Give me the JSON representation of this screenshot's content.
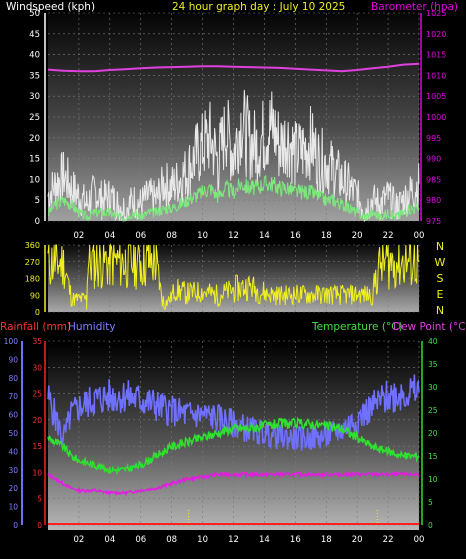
{
  "header": {
    "left_title": "Windspeed (kph)",
    "center_title": "24 hour graph day : July 10 2025",
    "right_title": "Barometer (hpa)"
  },
  "colors": {
    "wind_speed": "#e8e8e8",
    "wind_avg": "#7ee87e",
    "barometer": "#e040e0",
    "direction": "#f0f020",
    "rain": "#ff2020",
    "humidity": "#7070ff",
    "temperature": "#30e030",
    "dewpoint": "#e020e0",
    "left_axis_text": "#ffffff",
    "baro_axis_text": "#e000e0",
    "rain_axis_text": "#ff3030",
    "hum_axis_text": "#8080ff",
    "temp_axis_text": "#40e040"
  },
  "chart_data": [
    {
      "id": "wind",
      "type": "line",
      "title": "24 hour graph day : July 10 2025",
      "ylabel": "Windspeed (kph)",
      "y2label": "Barometer (hpa)",
      "ylim": [
        0,
        50
      ],
      "y2lim": [
        975,
        1025
      ],
      "xlim": [
        0,
        24
      ],
      "yticks": [
        "0",
        "5",
        "10",
        "15",
        "20",
        "25",
        "30",
        "35",
        "40",
        "45",
        "50"
      ],
      "y2ticks": [
        "975",
        "980",
        "985",
        "990",
        "995",
        "1000",
        "1005",
        "1010",
        "1015",
        "1020",
        "1025"
      ],
      "grid": true,
      "series": [
        {
          "key": "gust",
          "color": "#e8e8e8",
          "x": [
            0,
            0.5,
            1,
            1.5,
            2,
            2.5,
            3,
            3.5,
            4,
            4.5,
            5,
            5.5,
            6,
            6.5,
            7,
            7.5,
            8,
            8.5,
            9,
            9.5,
            10,
            10.5,
            11,
            11.5,
            12,
            12.5,
            13,
            13.5,
            14,
            14.5,
            15,
            15.5,
            16,
            16.5,
            17,
            17.5,
            18,
            18.5,
            19,
            19.5,
            20,
            20.5,
            21,
            21.5,
            22,
            22.5,
            23,
            23.5,
            24
          ],
          "y": [
            6,
            9,
            11,
            8,
            6,
            4,
            7,
            5,
            6,
            4,
            3,
            5,
            4,
            6,
            5,
            9,
            8,
            10,
            12,
            15,
            18,
            20,
            14,
            22,
            16,
            24,
            19,
            18,
            21,
            23,
            18,
            20,
            16,
            17,
            19,
            15,
            14,
            12,
            10,
            8,
            6,
            3,
            5,
            4,
            6,
            3,
            5,
            7,
            9
          ]
        },
        {
          "key": "average",
          "color": "#7ee87e",
          "x": [
            0,
            0.5,
            1,
            1.5,
            2,
            2.5,
            3,
            3.5,
            4,
            4.5,
            5,
            5.5,
            6,
            6.5,
            7,
            7.5,
            8,
            8.5,
            9,
            9.5,
            10,
            10.5,
            11,
            11.5,
            12,
            12.5,
            13,
            13.5,
            14,
            14.5,
            15,
            15.5,
            16,
            16.5,
            17,
            17.5,
            18,
            18.5,
            19,
            19.5,
            20,
            20.5,
            21,
            21.5,
            22,
            22.5,
            23,
            23.5,
            24
          ],
          "y": [
            2,
            4,
            5,
            4,
            2,
            1,
            2,
            2,
            2,
            1,
            1,
            2,
            1,
            2,
            2,
            3,
            3,
            4,
            5,
            6,
            7,
            8,
            6,
            8,
            7,
            9,
            8,
            8,
            9,
            9,
            8,
            8,
            7,
            7,
            7,
            6,
            5,
            5,
            4,
            3,
            2,
            1,
            2,
            1,
            2,
            1,
            2,
            3,
            3
          ]
        },
        {
          "key": "barometer",
          "color": "#e040e0",
          "axis": "right",
          "x": [
            0,
            1,
            2,
            3,
            4,
            5,
            6,
            7,
            8,
            9,
            10,
            11,
            12,
            13,
            14,
            15,
            16,
            17,
            18,
            19,
            20,
            21,
            22,
            23,
            24
          ],
          "y": [
            1011.4,
            1011.1,
            1011.0,
            1011.0,
            1011.3,
            1011.5,
            1011.7,
            1011.9,
            1012.0,
            1012.1,
            1012.2,
            1012.2,
            1012.1,
            1012.0,
            1011.9,
            1011.8,
            1011.6,
            1011.4,
            1011.2,
            1011.0,
            1011.3,
            1011.7,
            1012.1,
            1012.6,
            1012.8
          ]
        }
      ]
    },
    {
      "id": "direction",
      "type": "line",
      "ylim": [
        0,
        360
      ],
      "xlim": [
        0,
        24
      ],
      "yticks": [
        "0",
        "90",
        "180",
        "270",
        "360"
      ],
      "right_labels": [
        "N",
        "W",
        "S",
        "E",
        "N"
      ],
      "xticks": [
        "02",
        "04",
        "06",
        "08",
        "10",
        "12",
        "14",
        "16",
        "18",
        "20",
        "22",
        "00"
      ],
      "series": [
        {
          "key": "direction",
          "color": "#f0f020",
          "x": [
            0,
            0.5,
            1,
            1.2,
            1.5,
            2,
            2.5,
            2.6,
            3,
            4,
            5,
            6,
            6.5,
            7,
            7.2,
            7.5,
            8,
            8.2,
            9,
            10,
            11,
            12,
            13,
            14,
            15,
            16,
            17,
            18,
            19,
            20,
            21,
            21.2,
            21.5,
            22,
            23,
            24
          ],
          "y": [
            270,
            265,
            260,
            200,
            70,
            70,
            70,
            270,
            265,
            270,
            268,
            270,
            272,
            270,
            150,
            40,
            80,
            120,
            100,
            110,
            90,
            120,
            140,
            100,
            90,
            95,
            92,
            95,
            90,
            95,
            90,
            180,
            260,
            268,
            270,
            270
          ]
        }
      ]
    },
    {
      "id": "rain-hum-temp",
      "type": "line",
      "ylabel": "Rainfall (mm)",
      "y2label": "Humidity",
      "y3label": "Temperature (°C)",
      "y4label": "Dew Point (°C)",
      "ylim_rain": [
        0,
        35
      ],
      "ylim_humidity": [
        0,
        100
      ],
      "ylim_temp": [
        0,
        40
      ],
      "xlim": [
        0,
        24
      ],
      "rain_ticks": [
        "0",
        "5",
        "10",
        "15",
        "20",
        "25",
        "30",
        "35"
      ],
      "hum_ticks": [
        "0",
        "10",
        "20",
        "30",
        "40",
        "50",
        "60",
        "70",
        "80",
        "90",
        "100"
      ],
      "temp_ticks": [
        "0",
        "5",
        "10",
        "15",
        "20",
        "25",
        "30",
        "35",
        "40"
      ],
      "xticks": [
        "02",
        "04",
        "06",
        "08",
        "10",
        "12",
        "14",
        "16",
        "18",
        "20",
        "22",
        "00"
      ],
      "series": [
        {
          "key": "humidity",
          "color": "#7070ff",
          "x": [
            0,
            0.5,
            1,
            1.5,
            2,
            3,
            4,
            5,
            6,
            7,
            8,
            9,
            10,
            11,
            12,
            13,
            14,
            15,
            16,
            17,
            18,
            19,
            20,
            21,
            22,
            23,
            24
          ],
          "y": [
            70,
            58,
            47,
            60,
            64,
            68,
            70,
            70,
            68,
            65,
            62,
            60,
            60,
            58,
            55,
            52,
            50,
            48,
            47,
            47,
            48,
            52,
            58,
            64,
            70,
            72,
            72
          ]
        },
        {
          "key": "temperature",
          "color": "#30e030",
          "x": [
            0,
            0.5,
            1,
            1.5,
            2,
            3,
            4,
            5,
            6,
            7,
            8,
            9,
            10,
            11,
            12,
            13,
            14,
            15,
            16,
            17,
            18,
            19,
            20,
            21,
            22,
            23,
            24
          ],
          "y": [
            19,
            18,
            17,
            15,
            14,
            13,
            12,
            12,
            13,
            15,
            17,
            18,
            19,
            20,
            21,
            21,
            21.5,
            22,
            22,
            22,
            21.5,
            21,
            19,
            17,
            16,
            15,
            15
          ]
        },
        {
          "key": "dewpoint",
          "color": "#e020e0",
          "x": [
            0,
            0.5,
            1,
            1.5,
            2,
            3,
            4,
            5,
            6,
            7,
            8,
            9,
            10,
            11,
            12,
            13,
            14,
            15,
            16,
            17,
            18,
            19,
            20,
            21,
            22,
            23,
            24
          ],
          "y": [
            11,
            10,
            9,
            8,
            7.5,
            7.5,
            7,
            7,
            7.5,
            8,
            9,
            10,
            10.5,
            11,
            11,
            11,
            11,
            11,
            11,
            11,
            11,
            11,
            11,
            11,
            11,
            11,
            11
          ]
        },
        {
          "key": "rain",
          "color": "#ff2020",
          "x": [
            0,
            24
          ],
          "y": [
            0,
            0
          ]
        }
      ]
    }
  ],
  "axes": {
    "rain_label": "Rainfall (mm)",
    "humidity_label": "Humidity",
    "temp_label": "Temperature (°C)",
    "dew_label": "Dew Point (°C)"
  }
}
